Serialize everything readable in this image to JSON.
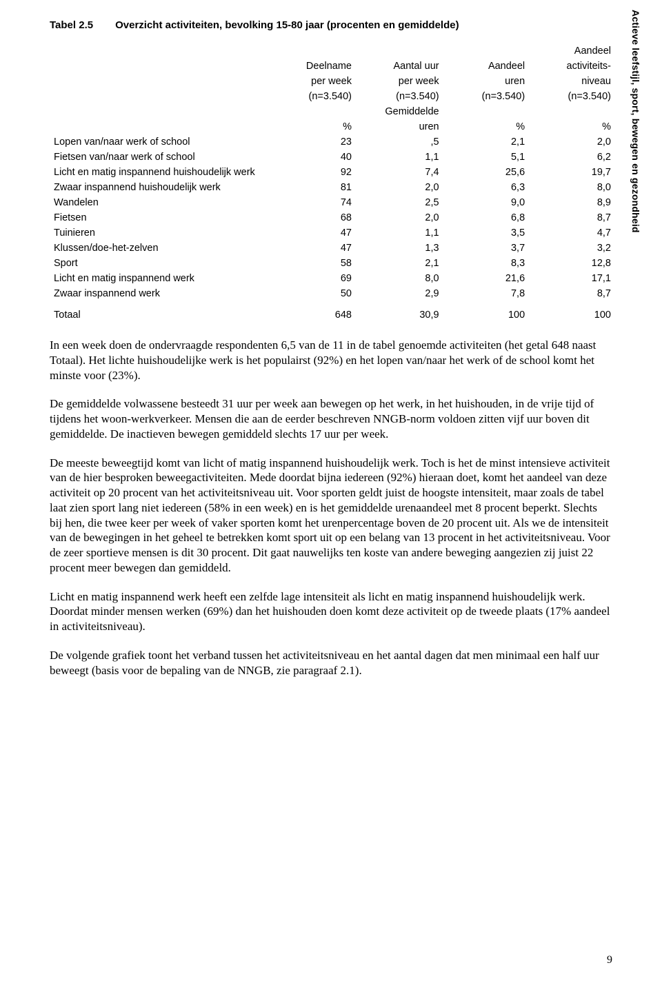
{
  "side_label": "Actieve leefstijl, sport, bewegen en gezondheid",
  "table": {
    "number": "Tabel 2.5",
    "title": "Overzicht activiteiten, bevolking 15-80 jaar (procenten en gemiddelde)",
    "columns": [
      {
        "line1": "Deelname",
        "line2": "per week",
        "n": "(n=3.540)",
        "unit": "%"
      },
      {
        "line1": "Aantal uur",
        "line2": "per week",
        "n": "(n=3.540)",
        "unit_l1": "Gemiddelde",
        "unit_l2": "uren"
      },
      {
        "line1": "Aandeel",
        "line2": "uren",
        "n": "(n=3.540)",
        "unit": "%"
      },
      {
        "line0": "Aandeel",
        "line1": "activiteits-",
        "line2": "niveau",
        "n": "(n=3.540)",
        "unit": "%"
      }
    ],
    "rows": [
      {
        "label": "Lopen van/naar werk of school",
        "c1": "23",
        "c2": ",5",
        "c3": "2,1",
        "c4": "2,0"
      },
      {
        "label": "Fietsen van/naar werk of school",
        "c1": "40",
        "c2": "1,1",
        "c3": "5,1",
        "c4": "6,2"
      },
      {
        "label": "Licht en matig inspannend huishoudelijk werk",
        "c1": "92",
        "c2": "7,4",
        "c3": "25,6",
        "c4": "19,7"
      },
      {
        "label": "Zwaar inspannend huishoudelijk werk",
        "c1": "81",
        "c2": "2,0",
        "c3": "6,3",
        "c4": "8,0"
      },
      {
        "label": "Wandelen",
        "c1": "74",
        "c2": "2,5",
        "c3": "9,0",
        "c4": "8,9"
      },
      {
        "label": "Fietsen",
        "c1": "68",
        "c2": "2,0",
        "c3": "6,8",
        "c4": "8,7"
      },
      {
        "label": "Tuinieren",
        "c1": "47",
        "c2": "1,1",
        "c3": "3,5",
        "c4": "4,7"
      },
      {
        "label": "Klussen/doe-het-zelven",
        "c1": "47",
        "c2": "1,3",
        "c3": "3,7",
        "c4": "3,2"
      },
      {
        "label": "Sport",
        "c1": "58",
        "c2": "2,1",
        "c3": "8,3",
        "c4": "12,8"
      },
      {
        "label": "Licht en matig inspannend werk",
        "c1": "69",
        "c2": "8,0",
        "c3": "21,6",
        "c4": "17,1"
      },
      {
        "label": "Zwaar inspannend werk",
        "c1": "50",
        "c2": "2,9",
        "c3": "7,8",
        "c4": "8,7"
      }
    ],
    "total": {
      "label": "Totaal",
      "c1": "648",
      "c2": "30,9",
      "c3": "100",
      "c4": "100"
    }
  },
  "paragraphs": [
    "In een week doen de ondervraagde respondenten 6,5 van de 11 in de tabel genoemde activiteiten (het getal 648 naast Totaal). Het lichte huishoudelijke werk is het populairst (92%) en het lopen van/naar het werk of de school komt het minste voor (23%).",
    "De gemiddelde volwassene besteedt 31 uur per week aan bewegen op het werk, in het huishouden, in de vrije tijd of tijdens het woon-werkverkeer. Mensen die aan de eerder beschreven NNGB-norm voldoen zitten vijf uur boven dit gemiddelde. De inactieven bewegen gemiddeld slechts 17 uur per week.",
    "De meeste beweegtijd komt van licht of matig inspannend huishoudelijk werk. Toch is het de minst intensieve activiteit van de hier besproken beweegactiviteiten. Mede doordat bijna iedereen (92%) hieraan doet, komt het aandeel van deze activiteit op 20 procent van het activiteitsniveau uit. Voor sporten geldt juist de hoogste intensiteit, maar zoals de tabel laat zien sport lang niet iedereen (58% in een week) en is het gemiddelde urenaandeel met 8 procent beperkt. Slechts bij hen, die twee keer per week of vaker sporten komt het urenpercentage boven de 20 procent uit. Als we de intensiteit van de bewegingen in het geheel te betrekken komt sport uit op een belang van 13 procent in het activiteitsniveau. Voor de zeer sportieve mensen is dit 30 procent. Dit gaat nauwelijks ten koste van andere beweging aangezien zij juist 22 procent meer bewegen dan gemiddeld.",
    "Licht en matig inspannend werk heeft een zelfde lage intensiteit als licht en matig inspannend huishoudelijk werk. Doordat minder mensen werken (69%) dan het huishouden doen komt deze activiteit op de tweede plaats (17% aandeel in activiteitsniveau).",
    "De volgende grafiek toont het verband tussen het activiteitsniveau en het aantal dagen dat men minimaal een half uur beweegt (basis voor de bepaling van de NNGB, zie paragraaf 2.1)."
  ],
  "page_number": "9"
}
